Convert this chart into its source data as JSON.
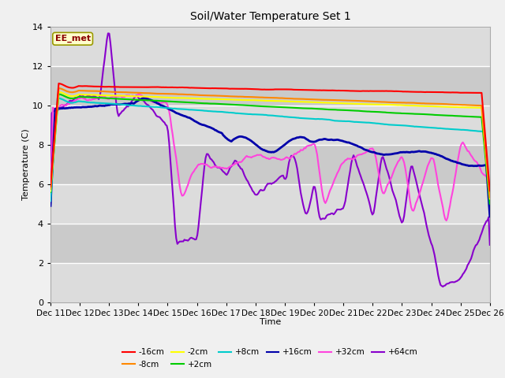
{
  "title": "Soil/Water Temperature Set 1",
  "xlabel": "Time",
  "ylabel": "Temperature (C)",
  "ylim": [
    0,
    14
  ],
  "x_tick_labels": [
    "Dec 11",
    "Dec 12",
    "Dec 13",
    "Dec 14",
    "Dec 15",
    "Dec 16",
    "Dec 17",
    "Dec 18",
    "Dec 19",
    "Dec 20",
    "Dec 21",
    "Dec 22",
    "Dec 23",
    "Dec 24",
    "Dec 25",
    "Dec 26"
  ],
  "annotation_text": "EE_met",
  "annotation_color": "#8B0000",
  "annotation_bg": "#FFFFCC",
  "annotation_border": "#999900",
  "fig_bg": "#F0F0F0",
  "plot_bg": "#D8D8D8",
  "band_light": "#DCDCDC",
  "band_dark": "#C8C8C8",
  "series": {
    "-16cm": {
      "color": "#FF0000",
      "lw": 1.5,
      "zorder": 5
    },
    "-8cm": {
      "color": "#FF8800",
      "lw": 1.5,
      "zorder": 5
    },
    "-2cm": {
      "color": "#FFFF00",
      "lw": 1.5,
      "zorder": 5
    },
    "+2cm": {
      "color": "#00CC00",
      "lw": 1.5,
      "zorder": 5
    },
    "+8cm": {
      "color": "#00CCCC",
      "lw": 1.5,
      "zorder": 5
    },
    "+16cm": {
      "color": "#0000AA",
      "lw": 2.0,
      "zorder": 5
    },
    "+32cm": {
      "color": "#FF44DD",
      "lw": 1.5,
      "zorder": 4
    },
    "+64cm": {
      "color": "#8800CC",
      "lw": 1.5,
      "zorder": 4
    }
  }
}
